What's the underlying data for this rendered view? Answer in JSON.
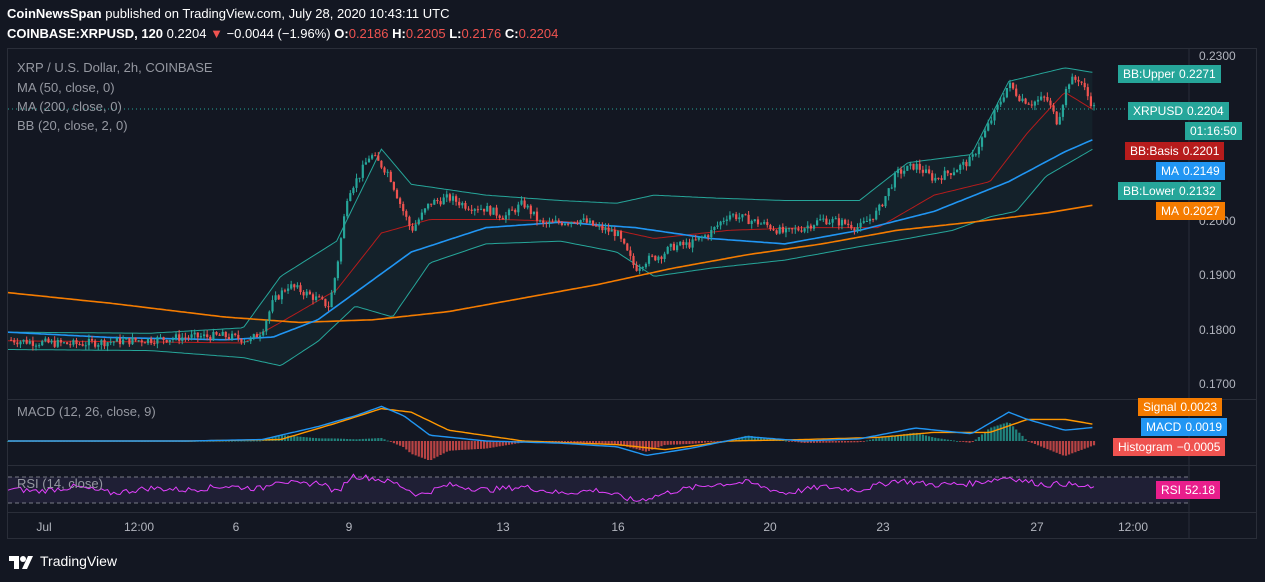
{
  "header": {
    "line1_author": "CoinNewsSpan",
    "line1_rest": "published on TradingView.com, July 28, 2020 10:43:11 UTC",
    "symbol": "COINBASE:XRPUSD, 120",
    "last": "0.2204",
    "arrow": "▼",
    "change": "−0.0044 (−1.96%)",
    "o_label": "O:",
    "o_val": "0.2186",
    "h_label": "H:",
    "h_val": "0.2205",
    "l_label": "L:",
    "l_val": "0.2176",
    "c_label": "C:",
    "c_val": "0.2204"
  },
  "legend": {
    "title": "XRP / U.S. Dollar, 2h, COINBASE",
    "ma50": "MA (50, close, 0)",
    "ma200": "MA (200, close, 0)",
    "bb": "BB (20, close, 2, 0)",
    "macd": "MACD (12, 26, close, 9)",
    "rsi": "RSI (14, close)"
  },
  "tags": {
    "bb_upper": {
      "label": "BB:Upper",
      "value": "0.2271"
    },
    "xrpusd": {
      "label": "XRPUSD",
      "value": "0.2204"
    },
    "countdown": "01:16:50",
    "bb_basis": {
      "label": "BB:Basis",
      "value": "0.2201"
    },
    "ma50": {
      "label": "MA",
      "value": "0.2149"
    },
    "bb_lower": {
      "label": "BB:Lower",
      "value": "0.2132"
    },
    "ma200": {
      "label": "MA",
      "value": "0.2027"
    },
    "signal": {
      "label": "Signal",
      "value": "0.0023"
    },
    "macd": {
      "label": "MACD",
      "value": "0.0019"
    },
    "histogram": {
      "label": "Histogram",
      "value": "−0.0005"
    },
    "rsi": {
      "label": "RSI",
      "value": "52.18"
    }
  },
  "colors": {
    "up": "#26a69a",
    "down": "#ef5350",
    "ma50": "#2196f3",
    "ma200": "#f57c00",
    "bb": "#26a69a",
    "bb_basis": "#b71c1c",
    "rsi": "#e040fb",
    "signal": "#ff9800",
    "macd_line": "#2196f3"
  },
  "chart_data": {
    "type": "candlestick",
    "title": "XRP / U.S. Dollar, 2h, COINBASE",
    "y_ticks": [
      "0.2300",
      "0.2000",
      "0.1900",
      "0.1800",
      "0.1700"
    ],
    "ylim": [
      0.168,
      0.231
    ],
    "x_ticks": [
      "Jul",
      "12:00",
      "6",
      "9",
      "13",
      "16",
      "20",
      "23",
      "27",
      "12:00"
    ],
    "x_tick_pos": [
      0.0,
      3.3,
      6.0,
      9.0,
      13.0,
      16.0,
      20.0,
      23.0,
      27.0,
      29.5
    ],
    "x_range": [
      -0.8,
      30.8
    ],
    "close_series": {
      "t": [
        -0.8,
        0.0,
        1.0,
        2.0,
        3.0,
        4.0,
        5.0,
        5.7,
        6.0,
        6.3,
        6.7,
        7.0,
        7.4,
        7.8,
        8.0,
        8.3,
        8.6,
        8.9,
        9.2,
        9.4,
        9.7,
        10.0,
        10.5,
        11.0,
        11.5,
        12.0,
        12.5,
        13.0,
        13.5,
        14.0,
        14.5,
        15.0,
        15.5,
        16.0,
        16.3,
        16.7,
        17.0,
        17.5,
        18.0,
        18.5,
        19.0,
        19.5,
        20.0,
        20.5,
        21.0,
        21.5,
        22.0,
        22.5,
        23.0,
        23.5,
        24.0,
        24.5,
        25.0,
        25.5,
        26.0,
        26.3,
        26.6,
        27.0,
        27.3,
        27.6,
        27.9,
        28.1,
        28.3
      ],
      "close": [
        0.1778,
        0.1773,
        0.177,
        0.1775,
        0.1778,
        0.1783,
        0.1785,
        0.1777,
        0.1795,
        0.1848,
        0.1878,
        0.187,
        0.1856,
        0.184,
        0.191,
        0.205,
        0.208,
        0.212,
        0.21,
        0.2085,
        0.203,
        0.198,
        0.203,
        0.204,
        0.2025,
        0.202,
        0.2005,
        0.203,
        0.199,
        0.1995,
        0.2,
        0.1985,
        0.1975,
        0.191,
        0.1925,
        0.1935,
        0.195,
        0.1955,
        0.1975,
        0.201,
        0.2,
        0.199,
        0.1975,
        0.1985,
        0.2,
        0.1995,
        0.1985,
        0.2015,
        0.2085,
        0.21,
        0.2075,
        0.209,
        0.211,
        0.218,
        0.225,
        0.2225,
        0.2215,
        0.2225,
        0.218,
        0.2255,
        0.226,
        0.223,
        0.2204
      ]
    },
    "ma50": {
      "t": [
        -0.8,
        2.0,
        5.0,
        6.3,
        7.5,
        8.7,
        10.0,
        12.0,
        14.0,
        16.0,
        18.0,
        20.0,
        22.0,
        24.0,
        26.0,
        27.5,
        28.3
      ],
      "v": [
        0.1792,
        0.1782,
        0.1778,
        0.1783,
        0.1815,
        0.1875,
        0.194,
        0.1985,
        0.1995,
        0.1985,
        0.1965,
        0.1955,
        0.198,
        0.2015,
        0.207,
        0.2125,
        0.2149
      ]
    },
    "ma200": {
      "t": [
        -0.8,
        2.0,
        5.0,
        7.0,
        9.0,
        11.0,
        13.0,
        15.0,
        17.0,
        19.0,
        21.0,
        23.0,
        25.0,
        27.0,
        28.3
      ],
      "v": [
        0.1865,
        0.1845,
        0.182,
        0.181,
        0.1815,
        0.183,
        0.1855,
        0.188,
        0.191,
        0.1935,
        0.1955,
        0.198,
        0.1995,
        0.2012,
        0.2027
      ]
    },
    "bb_upper": {
      "t": [
        -0.8,
        3.0,
        5.5,
        6.5,
        8.0,
        9.2,
        10.0,
        12.0,
        14.0,
        15.5,
        16.5,
        18.0,
        20.0,
        22.0,
        23.3,
        25.0,
        26.0,
        27.5,
        28.3
      ],
      "v": [
        0.1792,
        0.179,
        0.18,
        0.1895,
        0.196,
        0.213,
        0.2065,
        0.2045,
        0.2035,
        0.203,
        0.2045,
        0.204,
        0.2035,
        0.2035,
        0.2105,
        0.212,
        0.2255,
        0.228,
        0.2271
      ]
    },
    "bb_lower": {
      "t": [
        -0.8,
        3.0,
        5.5,
        6.5,
        7.5,
        8.5,
        9.5,
        10.5,
        12.0,
        14.0,
        15.5,
        16.5,
        18.0,
        20.0,
        22.0,
        23.3,
        24.5,
        25.5,
        26.2,
        27.0,
        28.3
      ],
      "v": [
        0.176,
        0.1758,
        0.1745,
        0.173,
        0.1775,
        0.184,
        0.182,
        0.192,
        0.1955,
        0.196,
        0.194,
        0.1895,
        0.191,
        0.1925,
        0.195,
        0.1965,
        0.198,
        0.2005,
        0.2015,
        0.208,
        0.2132
      ]
    },
    "bb_basis": {
      "t": [
        -0.8,
        3.0,
        5.5,
        6.5,
        8.0,
        9.2,
        10.5,
        12.5,
        14.5,
        16.5,
        18.5,
        20.5,
        22.5,
        24.0,
        25.5,
        26.5,
        27.5,
        28.3
      ],
      "v": [
        0.1776,
        0.1774,
        0.1772,
        0.181,
        0.187,
        0.1975,
        0.2,
        0.2,
        0.1995,
        0.1965,
        0.198,
        0.1985,
        0.1985,
        0.2045,
        0.207,
        0.216,
        0.2235,
        0.2201
      ]
    },
    "last_price": 0.2204,
    "macd": {
      "ylim": [
        -0.003,
        0.005
      ],
      "line": {
        "t": [
          -0.8,
          4.0,
          6.0,
          7.5,
          8.5,
          9.2,
          9.8,
          10.5,
          12.0,
          14.0,
          15.5,
          16.3,
          17.5,
          19.0,
          20.5,
          22.0,
          23.5,
          25.0,
          26.0,
          26.5,
          27.5,
          28.3
        ],
        "v": [
          0.0,
          0.0,
          0.0002,
          0.002,
          0.0035,
          0.0048,
          0.0035,
          0.0008,
          0.0,
          -0.0003,
          -0.0008,
          -0.002,
          -0.001,
          0.0006,
          0.0,
          0.0003,
          0.0018,
          0.001,
          0.004,
          0.003,
          0.0015,
          0.0019
        ]
      },
      "signal": {
        "t": [
          -0.8,
          4.0,
          6.5,
          8.0,
          9.2,
          10.0,
          11.0,
          13.0,
          15.5,
          16.8,
          18.5,
          20.5,
          22.5,
          24.0,
          25.5,
          26.5,
          27.5,
          28.3
        ],
        "v": [
          0.0,
          0.0,
          0.0002,
          0.0025,
          0.0045,
          0.004,
          0.0015,
          0.0,
          -0.0005,
          -0.0012,
          0.0,
          0.0002,
          0.0005,
          0.0012,
          0.0012,
          0.003,
          0.003,
          0.0023
        ]
      }
    },
    "rsi": {
      "ylim": [
        20,
        80
      ],
      "bands": [
        70,
        30
      ],
      "t": [
        -0.8,
        0.0,
        1.0,
        2.0,
        3.0,
        4.0,
        5.0,
        6.0,
        6.4,
        7.0,
        7.6,
        8.0,
        8.4,
        9.0,
        9.6,
        10.2,
        11.0,
        12.0,
        13.0,
        14.0,
        15.0,
        16.0,
        16.5,
        17.0,
        18.0,
        19.0,
        20.0,
        21.0,
        22.0,
        23.0,
        24.0,
        25.0,
        26.0,
        26.4,
        27.0,
        27.5,
        28.0,
        28.3
      ],
      "v": [
        52,
        48,
        55,
        45,
        53,
        50,
        56,
        52,
        66,
        58,
        62,
        45,
        72,
        68,
        60,
        42,
        58,
        50,
        55,
        45,
        50,
        33,
        40,
        48,
        58,
        62,
        45,
        55,
        50,
        65,
        58,
        60,
        70,
        64,
        58,
        60,
        55,
        52
      ]
    }
  }
}
